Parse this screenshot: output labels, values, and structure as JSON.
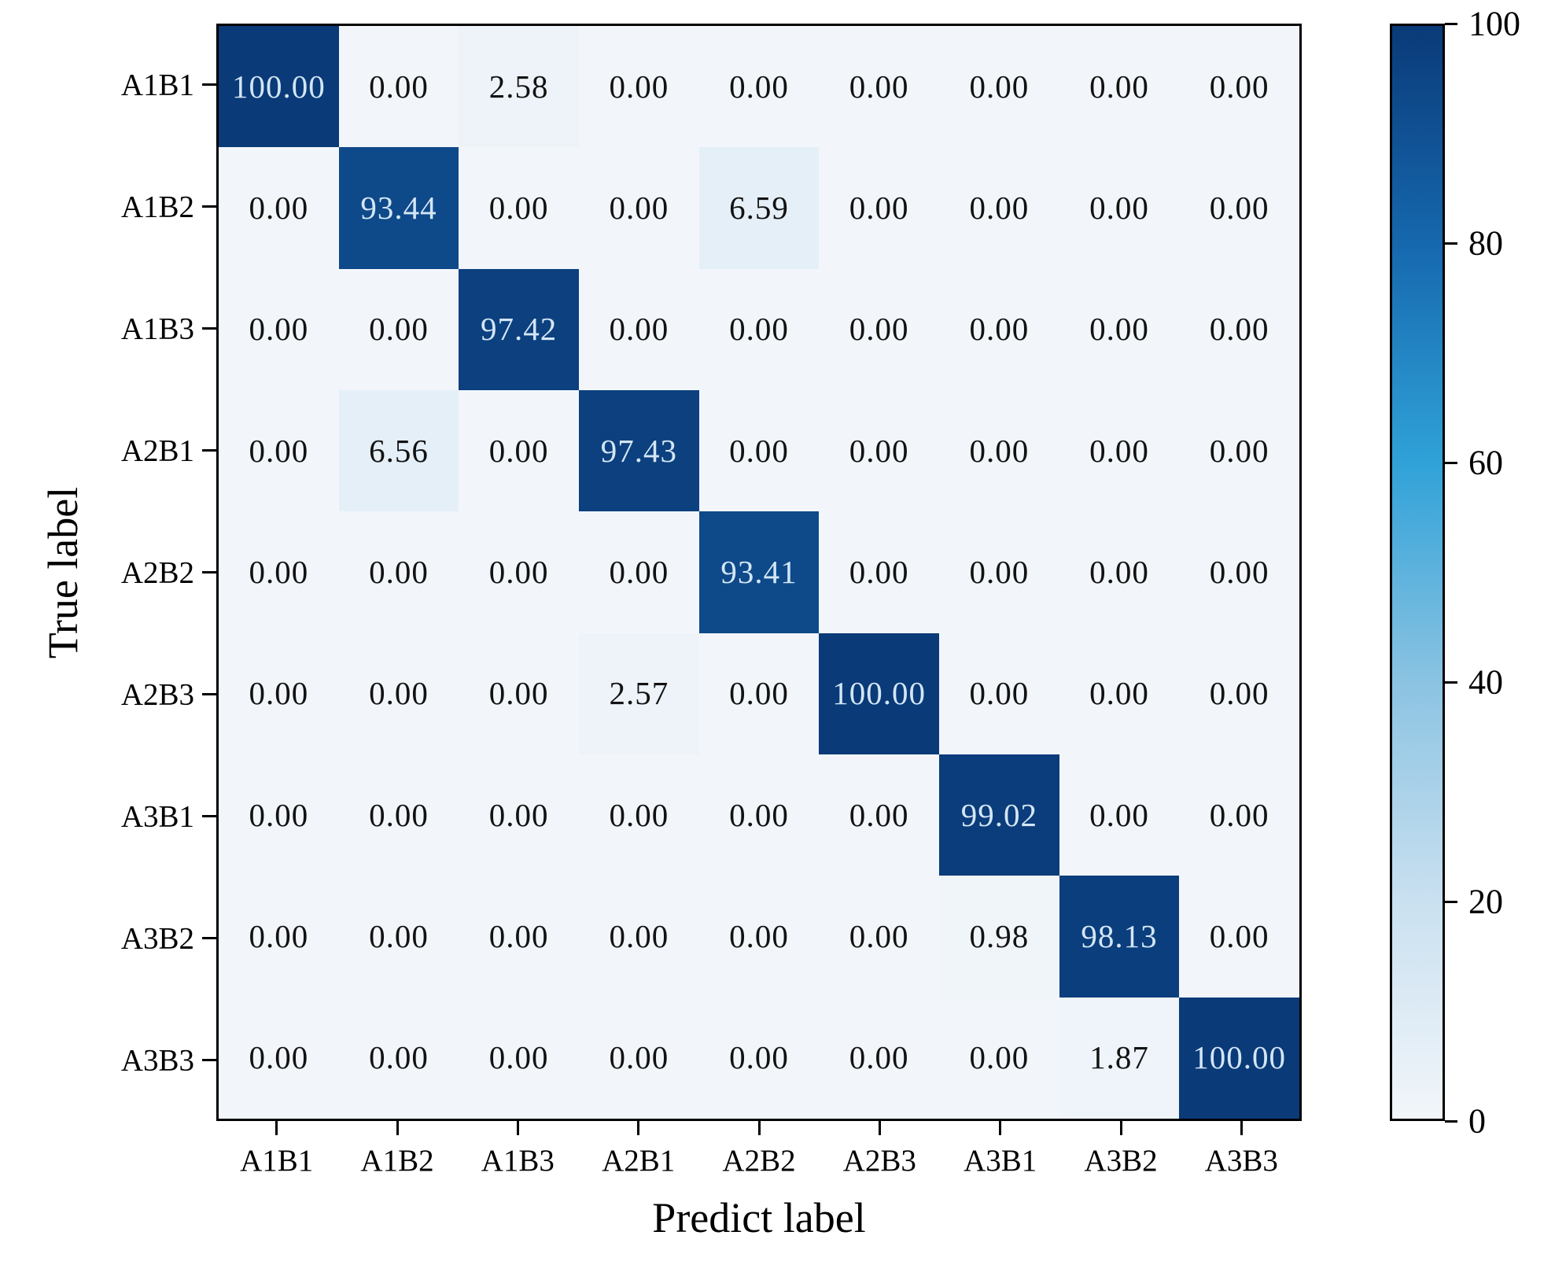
{
  "figure": {
    "background_color": "#ffffff",
    "axis_color": "#000000"
  },
  "chart_data": {
    "type": "heatmap",
    "title": "",
    "xlabel": "Predict label",
    "ylabel": "True label",
    "x_tick_labels": [
      "A1B1",
      "A1B2",
      "A1B3",
      "A2B1",
      "A2B2",
      "A2B3",
      "A3B1",
      "A3B2",
      "A3B3"
    ],
    "y_tick_labels": [
      "A1B1",
      "A1B2",
      "A1B3",
      "A2B1",
      "A2B2",
      "A2B3",
      "A3B1",
      "A3B2",
      "A3B3"
    ],
    "values_percent": [
      [
        100.0,
        0.0,
        2.58,
        0.0,
        0.0,
        0.0,
        0.0,
        0.0,
        0.0
      ],
      [
        0.0,
        93.44,
        0.0,
        0.0,
        6.59,
        0.0,
        0.0,
        0.0,
        0.0
      ],
      [
        0.0,
        0.0,
        97.42,
        0.0,
        0.0,
        0.0,
        0.0,
        0.0,
        0.0
      ],
      [
        0.0,
        6.56,
        0.0,
        97.43,
        0.0,
        0.0,
        0.0,
        0.0,
        0.0
      ],
      [
        0.0,
        0.0,
        0.0,
        0.0,
        93.41,
        0.0,
        0.0,
        0.0,
        0.0
      ],
      [
        0.0,
        0.0,
        0.0,
        2.57,
        0.0,
        100.0,
        0.0,
        0.0,
        0.0
      ],
      [
        0.0,
        0.0,
        0.0,
        0.0,
        0.0,
        0.0,
        99.02,
        0.0,
        0.0
      ],
      [
        0.0,
        0.0,
        0.0,
        0.0,
        0.0,
        0.0,
        0.98,
        98.13,
        0.0
      ],
      [
        0.0,
        0.0,
        0.0,
        0.0,
        0.0,
        0.0,
        0.0,
        1.87,
        100.0
      ]
    ],
    "value_format": ".2f",
    "value_range": [
      0,
      100
    ],
    "grid": false,
    "legend": false,
    "cell_text_color_on_dark": "#d3e6f5",
    "cell_text_color_on_light": "#121212",
    "dark_text_threshold_percent": 50,
    "colormap_stops": [
      {
        "value": 0,
        "color": "#f2f6fa"
      },
      {
        "value": 20,
        "color": "#c9e0f0"
      },
      {
        "value": 40,
        "color": "#8bc3e2"
      },
      {
        "value": 60,
        "color": "#30a2d8"
      },
      {
        "value": 80,
        "color": "#1668ae"
      },
      {
        "value": 100,
        "color": "#0a3a78"
      }
    ],
    "colorbar": {
      "position": "right",
      "min": 0,
      "max": 100,
      "tick_labels": [
        "100",
        "80",
        "60",
        "40",
        "20",
        "0"
      ]
    }
  }
}
